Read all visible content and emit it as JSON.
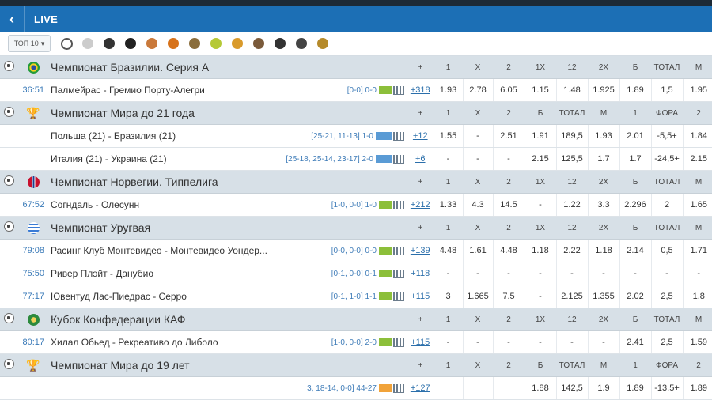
{
  "header": {
    "title": "LIVE",
    "back_icon": "chevron-left-icon"
  },
  "sports_bar": {
    "top_label": "ТОП 10",
    "icons": [
      "soccer-ball-icon",
      "volleyball-icon",
      "hockey-icon",
      "snooker-icon",
      "badminton-icon",
      "basketball-icon",
      "esports-icon",
      "tennis-icon",
      "table-tennis-icon",
      "hockey-sticks-icon",
      "cycling-icon",
      "ping-pong-icon",
      "darts-icon"
    ]
  },
  "leagues": [
    {
      "name": "Чемпионат Бразилии. Серия А",
      "icon": "soccer-ball-icon",
      "flag": "flag-brazil-icon",
      "headers": [
        "+",
        "1",
        "X",
        "2",
        "1X",
        "12",
        "2X",
        "Б",
        "ТОТАЛ",
        "М"
      ],
      "matches": [
        {
          "time": "36:51",
          "teams": "Палмейрас - Гремио Порту-Алегри",
          "score": "[0-0] 0-0",
          "more": "+318",
          "odds": [
            "1.93",
            "2.78",
            "6.05",
            "1.15",
            "1.48",
            "1.925",
            "1.89",
            "1,5",
            "1.95"
          ]
        }
      ]
    },
    {
      "name": "Чемпионат Мира до 21 года",
      "icon": "volleyball-icon",
      "flag": "trophy-icon",
      "headers": [
        "+",
        "1",
        "X",
        "2",
        "Б",
        "ТОТАЛ",
        "М",
        "1",
        "ФОРА",
        "2"
      ],
      "matches": [
        {
          "time": "",
          "teams": "Польша (21) - Бразилия (21)",
          "score": "[25-21, 11-13] 1-0",
          "more": "+12",
          "odds": [
            "1.55",
            "-",
            "2.51",
            "1.91",
            "189,5",
            "1.93",
            "2.01",
            "-5,5+",
            "1.84"
          ]
        },
        {
          "time": "",
          "teams": "Италия (21) - Украина (21)",
          "score": "[25-18, 25-14, 23-17] 2-0",
          "more": "+6",
          "odds": [
            "-",
            "-",
            "-",
            "2.15",
            "125,5",
            "1.7",
            "1.7",
            "-24,5+",
            "2.15"
          ]
        }
      ]
    },
    {
      "name": "Чемпионат Норвегии. Типпелига",
      "icon": "soccer-ball-icon",
      "flag": "flag-norway-icon",
      "headers": [
        "+",
        "1",
        "X",
        "2",
        "1X",
        "12",
        "2X",
        "Б",
        "ТОТАЛ",
        "М"
      ],
      "matches": [
        {
          "time": "67:52",
          "teams": "Согндаль - Олесунн",
          "score": "[1-0, 0-0] 1-0",
          "more": "+212",
          "odds": [
            "1.33",
            "4.3",
            "14.5",
            "-",
            "1.22",
            "3.3",
            "2.296",
            "2",
            "1.65"
          ]
        }
      ]
    },
    {
      "name": "Чемпионат Уругвая",
      "icon": "soccer-ball-icon",
      "flag": "flag-uruguay-icon",
      "headers": [
        "+",
        "1",
        "X",
        "2",
        "1X",
        "12",
        "2X",
        "Б",
        "ТОТАЛ",
        "М"
      ],
      "matches": [
        {
          "time": "79:08",
          "teams": "Расинг Клуб Монтевидео - Монтевидео Уондер...",
          "score": "[0-0, 0-0] 0-0",
          "more": "+139",
          "odds": [
            "4.48",
            "1.61",
            "4.48",
            "1.18",
            "2.22",
            "1.18",
            "2.14",
            "0,5",
            "1.71"
          ]
        },
        {
          "time": "75:50",
          "teams": "Ривер Плэйт - Данубио",
          "score": "[0-1, 0-0] 0-1",
          "more": "+118",
          "odds": [
            "-",
            "-",
            "-",
            "-",
            "-",
            "-",
            "-",
            "-",
            "-"
          ]
        },
        {
          "time": "77:17",
          "teams": "Ювентуд Лас-Пиедрас - Серро",
          "score": "[0-1, 1-0] 1-1",
          "more": "+115",
          "odds": [
            "3",
            "1.665",
            "7.5",
            "-",
            "2.125",
            "1.355",
            "2.02",
            "2,5",
            "1.8"
          ]
        }
      ]
    },
    {
      "name": "Кубок Конфедерации КАФ",
      "icon": "soccer-ball-icon",
      "flag": "caf-logo-icon",
      "headers": [
        "+",
        "1",
        "X",
        "2",
        "1X",
        "12",
        "2X",
        "Б",
        "ТОТАЛ",
        "М"
      ],
      "matches": [
        {
          "time": "80:17",
          "teams": "Хилал Обьед - Рекреативо до Либоло",
          "score": "[1-0, 0-0] 2-0",
          "more": "+115",
          "odds": [
            "-",
            "-",
            "-",
            "-",
            "-",
            "-",
            "2.41",
            "2,5",
            "1.59"
          ]
        }
      ]
    },
    {
      "name": "Чемпионат Мира до 19 лет",
      "icon": "basketball-icon",
      "flag": "trophy-icon",
      "headers": [
        "+",
        "1",
        "X",
        "2",
        "Б",
        "ТОТАЛ",
        "М",
        "1",
        "ФОРА",
        "2"
      ],
      "matches": [
        {
          "time": "",
          "teams": "",
          "score": "3, 18-14, 0-0] 44-27",
          "more": "+127",
          "odds": [
            "",
            "",
            "",
            "1.88",
            "142,5",
            "1.9",
            "1.89",
            "-13,5+",
            "1.89"
          ]
        }
      ]
    }
  ],
  "colors": {
    "brand_blue": "#1c6fb5",
    "league_row": "#d7e0e7",
    "link": "#2b6fab",
    "stats_green": "#8cbf3a"
  }
}
